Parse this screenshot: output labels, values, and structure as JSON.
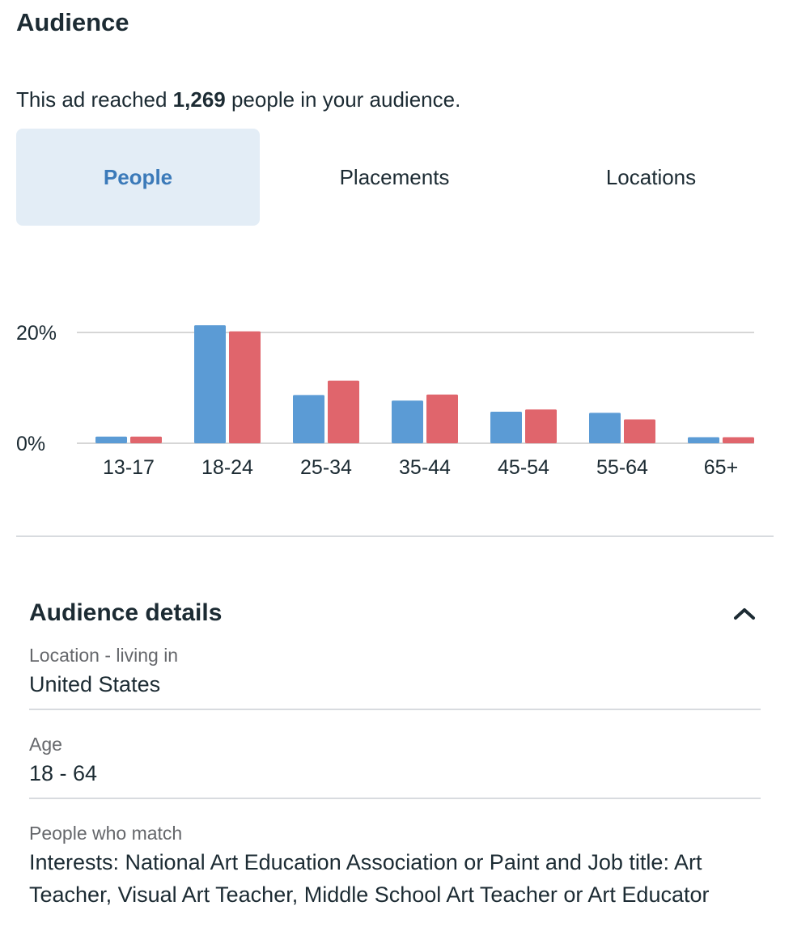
{
  "header": {
    "title": "Audience"
  },
  "reach": {
    "prefix": "This ad reached ",
    "count": "1,269",
    "suffix": " people in your audience."
  },
  "tabs": [
    {
      "label": "People",
      "active": true
    },
    {
      "label": "Placements",
      "active": false
    },
    {
      "label": "Locations",
      "active": false
    }
  ],
  "chart_data": {
    "type": "bar",
    "categories": [
      "13-17",
      "18-24",
      "25-34",
      "35-44",
      "45-54",
      "55-64",
      "65+"
    ],
    "series": [
      {
        "color": "#5b9bd5",
        "values": [
          1.2,
          21.3,
          8.7,
          7.7,
          5.7,
          5.5,
          1.1
        ]
      },
      {
        "color": "#e0656c",
        "values": [
          1.2,
          20.2,
          11.3,
          8.8,
          6.1,
          4.3,
          1.1
        ]
      }
    ],
    "yticks": [
      {
        "value": 0,
        "label": "0%"
      },
      {
        "value": 20,
        "label": "20%"
      }
    ],
    "ylim": [
      0,
      22
    ],
    "grid": true
  },
  "details": {
    "title": "Audience details",
    "collapse_icon": "chevron-up-icon",
    "fields": [
      {
        "label": "Location - living in",
        "value": "United States"
      },
      {
        "label": "Age",
        "value": "18 - 64"
      },
      {
        "label": "People who match",
        "value": "Interests: National Art Education Association or Paint and Job title: Art Teacher, Visual Art Teacher, Middle School Art Teacher or Art Educator"
      }
    ]
  }
}
